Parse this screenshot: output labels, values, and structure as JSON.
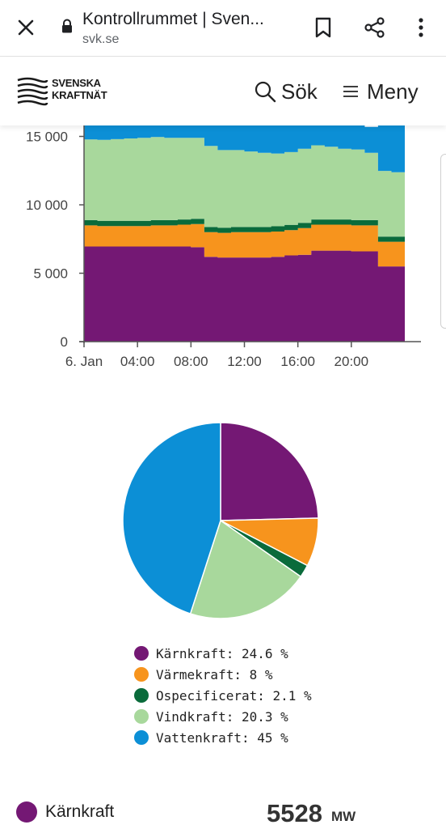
{
  "browser": {
    "title": "Kontrollrummet | Sven...",
    "url": "svk.se"
  },
  "site": {
    "logo_line1": "SVENSKA",
    "logo_line2": "KRAFTNÄT",
    "search_label": "Sök",
    "menu_label": "Meny"
  },
  "colors": {
    "karnkraft": "#741874",
    "varmekraft": "#f7941d",
    "ospecificerat": "#0a6b3b",
    "vindkraft": "#a8d89c",
    "vattenkraft": "#0c8fd6"
  },
  "chart_data": [
    {
      "type": "area",
      "stacked": true,
      "x": [
        "00:00",
        "01:00",
        "02:00",
        "03:00",
        "04:00",
        "05:00",
        "06:00",
        "07:00",
        "08:00",
        "09:00",
        "10:00",
        "11:00",
        "12:00",
        "13:00",
        "14:00",
        "15:00",
        "16:00",
        "17:00",
        "18:00",
        "19:00",
        "20:00",
        "21:00",
        "22:00",
        "23:00"
      ],
      "xticks": [
        "6. Jan",
        "04:00",
        "08:00",
        "12:00",
        "16:00",
        "20:00"
      ],
      "yticks": [
        "0",
        "5 000",
        "10 000",
        "15 000"
      ],
      "ylim": [
        0,
        15800
      ],
      "series": [
        {
          "name": "Kärnkraft",
          "values": [
            6950,
            6950,
            6950,
            6950,
            6950,
            6950,
            6950,
            6950,
            6900,
            6200,
            6150,
            6150,
            6150,
            6150,
            6200,
            6300,
            6350,
            6650,
            6650,
            6650,
            6600,
            6600,
            5500,
            5500
          ]
        },
        {
          "name": "Värmekraft",
          "values": [
            1550,
            1500,
            1500,
            1500,
            1500,
            1550,
            1550,
            1600,
            1700,
            1800,
            1800,
            1850,
            1850,
            1850,
            1850,
            1850,
            1950,
            1900,
            1900,
            1900,
            1900,
            1900,
            1800,
            1800
          ]
        },
        {
          "name": "Ospecificerat",
          "values": [
            380,
            380,
            380,
            380,
            380,
            380,
            380,
            380,
            380,
            380,
            380,
            380,
            380,
            380,
            380,
            380,
            380,
            380,
            380,
            380,
            380,
            380,
            380,
            380
          ]
        },
        {
          "name": "Vindkraft",
          "values": [
            5900,
            5920,
            5970,
            6020,
            6070,
            6070,
            6020,
            5970,
            5920,
            5920,
            5670,
            5620,
            5520,
            5420,
            5320,
            5320,
            5420,
            5420,
            5320,
            5170,
            5170,
            4920,
            4800,
            4700
          ]
        },
        {
          "name": "Vattenkraft",
          "values": [
            1020,
            1050,
            1000,
            950,
            900,
            850,
            900,
            900,
            900,
            1500,
            1800,
            1800,
            1900,
            2000,
            2050,
            1950,
            1700,
            1450,
            1550,
            1700,
            1750,
            1900,
            3320,
            3420
          ]
        }
      ]
    },
    {
      "type": "pie",
      "labels": [
        "Kärnkraft",
        "Värmekraft",
        "Ospecificerat",
        "Vindkraft",
        "Vattenkraft"
      ],
      "values": [
        24.6,
        8,
        2.1,
        20.3,
        45
      ],
      "legend": [
        "Kärnkraft: 24.6 %",
        "Värmekraft: 8 %",
        "Ospecificerat: 2.1 %",
        "Vindkraft: 20.3 %",
        "Vattenkraft: 45 %"
      ]
    }
  ],
  "bottom": {
    "label": "Kärnkraft",
    "value": "5528",
    "unit": "MW"
  }
}
